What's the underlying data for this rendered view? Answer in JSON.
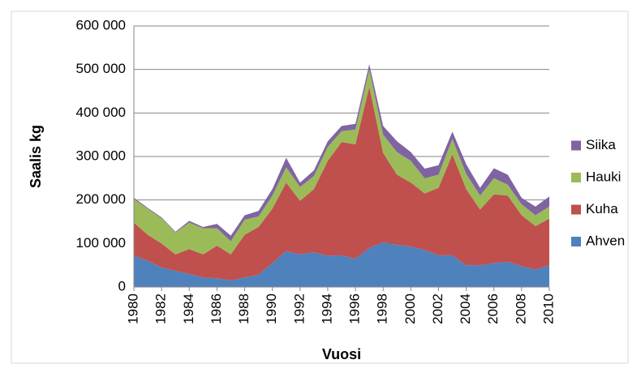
{
  "chart_data": {
    "type": "stacked-area",
    "x_label": "Vuosi",
    "y_label": "Saalis kg",
    "x": [
      1980,
      1981,
      1982,
      1983,
      1984,
      1985,
      1986,
      1987,
      1988,
      1989,
      1990,
      1991,
      1992,
      1993,
      1994,
      1995,
      1996,
      1997,
      1998,
      1999,
      2000,
      2001,
      2002,
      2003,
      2004,
      2005,
      2006,
      2007,
      2008,
      2009,
      2010
    ],
    "xlim": [
      1980,
      2010
    ],
    "xticks": [
      1980,
      1982,
      1984,
      1986,
      1988,
      1990,
      1992,
      1994,
      1996,
      1998,
      2000,
      2002,
      2004,
      2006,
      2008,
      2010
    ],
    "ylim": [
      0,
      600000
    ],
    "yticks": [
      0,
      {
        "value": 100000,
        "label": "100 000"
      },
      {
        "value": 200000,
        "label": "200 000"
      },
      {
        "value": 300000,
        "label": "300 000"
      },
      {
        "value": 400000,
        "label": "400 000"
      },
      {
        "value": 500000,
        "label": "500 000"
      },
      {
        "value": 600000,
        "label": "600 000"
      }
    ],
    "grid": true,
    "legend": "right",
    "series": [
      {
        "name": "Ahven",
        "color": "#4f81bd",
        "values": [
          72000,
          60000,
          45000,
          37000,
          30000,
          22000,
          20000,
          15000,
          22000,
          28000,
          55000,
          83000,
          75000,
          80000,
          72000,
          73000,
          65000,
          90000,
          103000,
          97000,
          93000,
          85000,
          73000,
          73000,
          50000,
          50000,
          55000,
          58000,
          48000,
          40000,
          50000
        ]
      },
      {
        "name": "Kuha",
        "color": "#c0504d",
        "values": [
          76000,
          60000,
          55000,
          38000,
          57000,
          53000,
          75000,
          60000,
          98000,
          110000,
          125000,
          157000,
          123000,
          145000,
          218000,
          260000,
          263000,
          370000,
          205000,
          161000,
          147000,
          130000,
          155000,
          232000,
          175000,
          128000,
          158000,
          152000,
          117000,
          100000,
          107000
        ]
      },
      {
        "name": "Hauki",
        "color": "#9bbb59",
        "values": [
          54000,
          60000,
          58000,
          50000,
          61000,
          60000,
          40000,
          30000,
          35000,
          24000,
          30000,
          35000,
          32000,
          30000,
          32000,
          25000,
          34000,
          40000,
          42000,
          52000,
          50000,
          35000,
          30000,
          35000,
          35000,
          32000,
          37000,
          25000,
          25000,
          25000,
          28000
        ]
      },
      {
        "name": "Siika",
        "color": "#8064a2",
        "values": [
          3000,
          2000,
          2000,
          2000,
          4000,
          3000,
          10000,
          13000,
          10000,
          13000,
          15000,
          22000,
          10000,
          13000,
          13000,
          12000,
          13000,
          12000,
          20000,
          25000,
          20000,
          22000,
          22000,
          17000,
          22000,
          18000,
          23000,
          23000,
          15000,
          20000,
          23000
        ]
      }
    ]
  }
}
